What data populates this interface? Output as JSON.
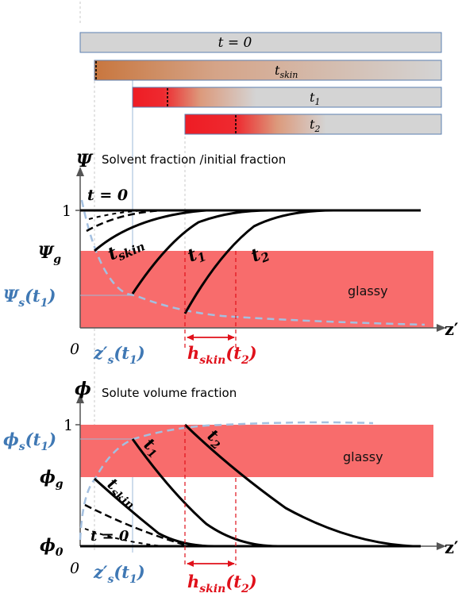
{
  "colors": {
    "bar_fill": "#d4d4d4",
    "bar_border": "#5b7fb0",
    "skin_red": "#ee1c24",
    "glassy_band": "#f86c6c",
    "curve": "#000000",
    "dashed_light": "#a4c0e0",
    "blue_label": "#3f78b4",
    "red_label": "#e0101a",
    "guide": "#c8c8c8"
  },
  "timeline": {
    "bars": [
      {
        "label": "t = 0",
        "skin": "none"
      },
      {
        "label": "t_skin",
        "skin": "start"
      },
      {
        "label": "t_1",
        "skin": "mid"
      },
      {
        "label": "t_2",
        "skin": "late"
      }
    ]
  },
  "panel_top": {
    "symbol": "Ψ",
    "title": "Solvent fraction /initial fraction",
    "tick_one": "1",
    "label_t0": "t = 0",
    "label_tskin_base": "t",
    "label_tskin_sub": "skin",
    "label_t1_base": "t",
    "label_t1_sub": "1",
    "label_t2_base": "t",
    "label_t2_sub": "2",
    "psi_g_base": "Ψ",
    "psi_g_sub": "g",
    "psi_s_base": "Ψ",
    "psi_s_sub": "s",
    "psi_s_arg": "(t",
    "psi_s_arg_sub": "1",
    "psi_s_close": ")",
    "glassy": "glassy",
    "origin": "0",
    "axis": "z′",
    "zs_base": "z",
    "zs_prime": "′",
    "zs_sub": "s",
    "zs_arg": "(t",
    "zs_arg_sub": "1",
    "zs_close": ")",
    "h_base": "h",
    "h_sub": "skin",
    "h_arg": "(t",
    "h_arg_sub": "2",
    "h_close": ")"
  },
  "panel_bottom": {
    "symbol": "ϕ",
    "title": "Solute volume fraction",
    "tick_one": "1",
    "label_t0": "t = 0",
    "label_tskin_base": "t",
    "label_tskin_sub": "skin",
    "label_t1_base": "t",
    "label_t1_sub": "1",
    "label_t2_base": "t",
    "label_t2_sub": "2",
    "phi_s_base": "ϕ",
    "phi_s_sub": "s",
    "phi_s_arg": "(t",
    "phi_s_arg_sub": "1",
    "phi_s_close": ")",
    "phi_g_base": "ϕ",
    "phi_g_sub": "g",
    "phi_0_base": "ϕ",
    "phi_0_sub": "0",
    "glassy": "glassy",
    "origin": "0",
    "axis": "z′",
    "zs_base": "z",
    "zs_prime": "′",
    "zs_sub": "s",
    "zs_arg": "(t",
    "zs_arg_sub": "1",
    "zs_close": ")",
    "h_base": "h",
    "h_sub": "skin",
    "h_arg": "(t",
    "h_arg_sub": "2",
    "h_close": ")"
  }
}
